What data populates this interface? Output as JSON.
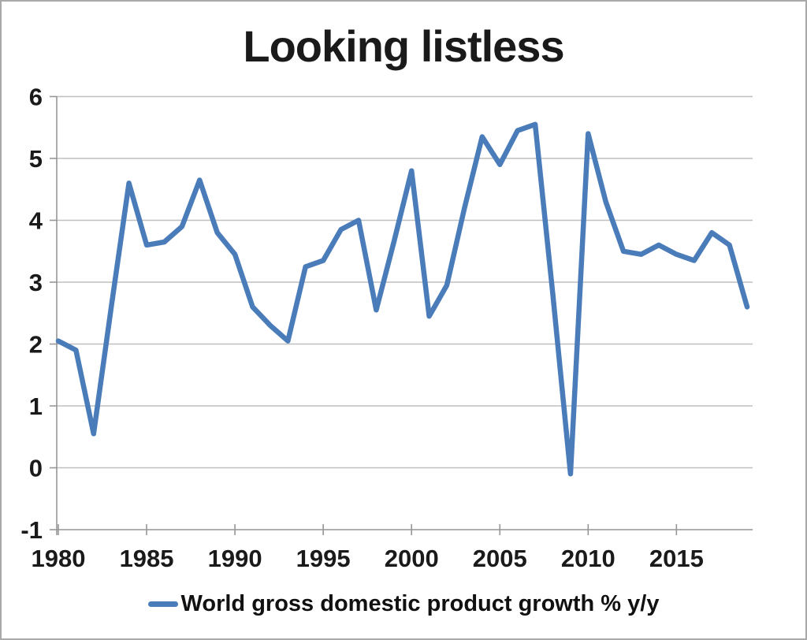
{
  "title": "Looking listless",
  "legend": {
    "label": "World gross domestic product growth % y/y"
  },
  "colors": {
    "line": "#4a7cba",
    "gridline": "#bfbfbf",
    "axis": "#969696",
    "tick_text": "#1a1a1a",
    "background": "#ffffff",
    "frame_border": "#a9a9a9"
  },
  "chart_data": {
    "type": "line",
    "title": "Looking listless",
    "xlabel": "",
    "ylabel": "",
    "x": [
      1980,
      1981,
      1982,
      1983,
      1984,
      1985,
      1986,
      1987,
      1988,
      1989,
      1990,
      1991,
      1992,
      1993,
      1994,
      1995,
      1996,
      1997,
      1998,
      1999,
      2000,
      2001,
      2002,
      2003,
      2004,
      2005,
      2006,
      2007,
      2008,
      2009,
      2010,
      2011,
      2012,
      2013,
      2014,
      2015,
      2016,
      2017,
      2018,
      2019
    ],
    "series": [
      {
        "name": "World gross domestic product growth % y/y",
        "values": [
          2.05,
          1.9,
          0.55,
          2.6,
          4.6,
          3.6,
          3.65,
          3.9,
          4.65,
          3.8,
          3.45,
          2.6,
          2.3,
          2.05,
          3.25,
          3.35,
          3.85,
          4.0,
          2.55,
          3.65,
          4.8,
          2.45,
          2.95,
          4.2,
          5.35,
          4.9,
          5.45,
          5.55,
          2.8,
          -0.1,
          5.4,
          4.3,
          3.5,
          3.45,
          3.6,
          3.45,
          3.35,
          3.8,
          3.6,
          2.6
        ]
      }
    ],
    "ylim": [
      -1,
      6
    ],
    "xlim": [
      1980,
      2019
    ],
    "yticks": [
      6,
      5,
      4,
      3,
      2,
      1,
      0,
      -1
    ],
    "xticks": [
      1980,
      1985,
      1990,
      1995,
      2000,
      2005,
      2010,
      2015
    ],
    "grid": true,
    "legend_position": "bottom"
  }
}
